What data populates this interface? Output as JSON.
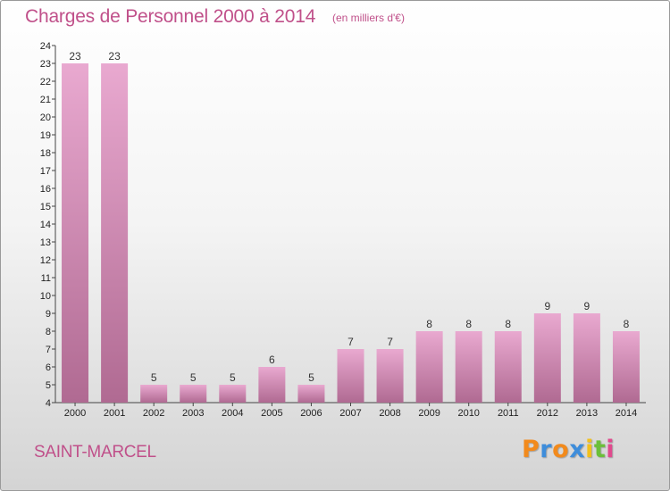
{
  "title": "Charges de Personnel 2000 à 2014",
  "subtitle": "(en milliers d'€)",
  "place_name": "SAINT-MARCEL",
  "logo": {
    "letters": [
      "P",
      "r",
      "o",
      "x",
      "i",
      "t",
      "i"
    ],
    "colors": [
      "#f28a1c",
      "#3e8ddb",
      "#f28a1c",
      "#3e8ddb",
      "#f2c01c",
      "#6bbf3a",
      "#e04a8e"
    ]
  },
  "colors": {
    "bar_top": "#e9a9d0",
    "bar_bottom": "#b06a92",
    "accent": "#c0508a"
  },
  "chart_data": {
    "type": "bar",
    "title": "Charges de Personnel 2000 à 2014",
    "subtitle": "(en milliers d'€)",
    "categories": [
      "2000",
      "2001",
      "2002",
      "2003",
      "2004",
      "2005",
      "2006",
      "2007",
      "2008",
      "2009",
      "2010",
      "2011",
      "2012",
      "2013",
      "2014"
    ],
    "values": [
      23,
      23,
      5,
      5,
      5,
      6,
      5,
      7,
      7,
      8,
      8,
      8,
      9,
      9,
      8
    ],
    "ylim": [
      4,
      24
    ],
    "yticks": [
      4,
      5,
      6,
      7,
      8,
      9,
      10,
      11,
      12,
      13,
      14,
      15,
      16,
      17,
      18,
      19,
      20,
      21,
      22,
      23,
      24
    ],
    "grid": false,
    "legend": "none",
    "xlabel": "",
    "ylabel": ""
  }
}
